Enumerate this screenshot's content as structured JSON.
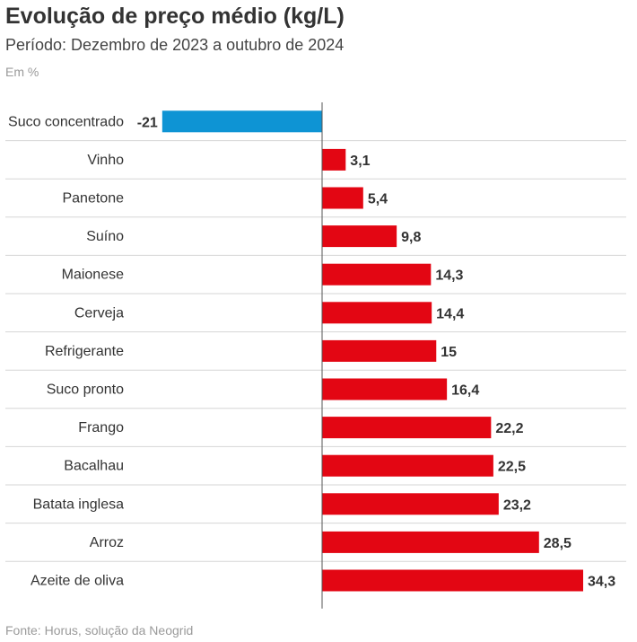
{
  "header": {
    "title": "Evolução de preço médio (kg/L)",
    "subtitle": "Período: Dezembro de 2023 a outubro de 2024",
    "unit": "Em %"
  },
  "footer": {
    "source": "Fonte: Horus, solução da Neogrid"
  },
  "colors": {
    "negative": "#0e94d4",
    "positive": "#e30613",
    "grid": "#d6d6d6",
    "axis": "#555555"
  },
  "chart_data": {
    "type": "bar",
    "orientation": "horizontal",
    "title": "Evolução de preço médio (kg/L)",
    "subtitle": "Período: Dezembro de 2023 a outubro de 2024",
    "unit": "Em %",
    "categories": [
      "Suco concentrado",
      "Vinho",
      "Panetone",
      "Suíno",
      "Maionese",
      "Cerveja",
      "Refrigerante",
      "Suco pronto",
      "Frango",
      "Bacalhau",
      "Batata inglesa",
      "Arroz",
      "Azeite de oliva"
    ],
    "values": [
      -21,
      3.1,
      5.4,
      9.8,
      14.3,
      14.4,
      15,
      16.4,
      22.2,
      22.5,
      23.2,
      28.5,
      34.3
    ],
    "value_labels": [
      "-21",
      "3,1",
      "5,4",
      "9,8",
      "14,3",
      "14,4",
      "15",
      "16,4",
      "22,2",
      "22,5",
      "23,2",
      "28,5",
      "34,3"
    ],
    "xlim": [
      -21,
      34.3
    ],
    "grid": true,
    "legend": "none"
  }
}
